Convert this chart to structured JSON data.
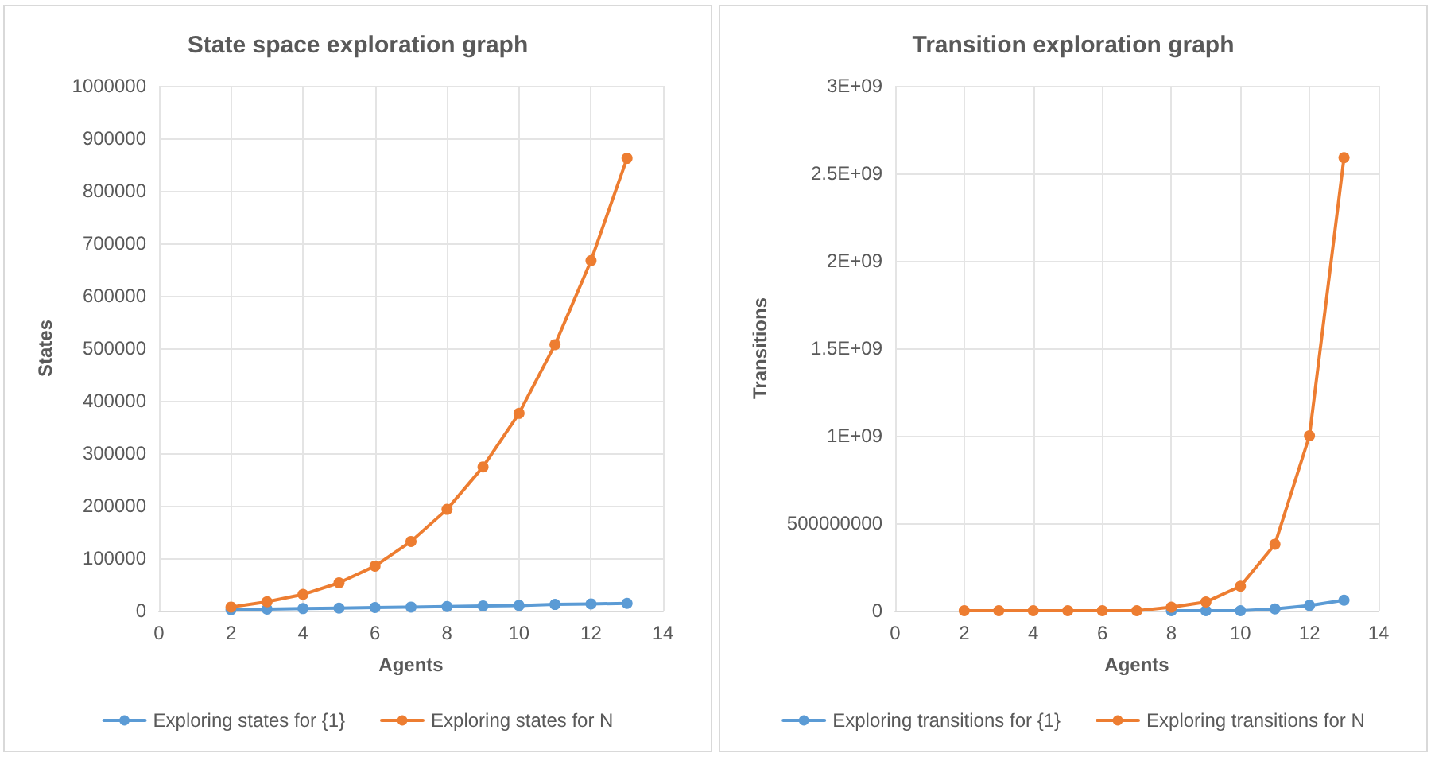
{
  "chart_data": [
    {
      "type": "line",
      "title": "State space exploration graph",
      "xlabel": "Agents",
      "ylabel": "States",
      "x": [
        2,
        3,
        4,
        5,
        6,
        7,
        8,
        9,
        10,
        11,
        12,
        13
      ],
      "series": [
        {
          "name": "Exploring states for {1}",
          "color": "#5b9bd5",
          "values": [
            2000,
            3000,
            4000,
            5000,
            6000,
            7000,
            8000,
            9000,
            10000,
            12000,
            13000,
            14000
          ]
        },
        {
          "name": "Exploring states for N",
          "color": "#ed7d31",
          "values": [
            7000,
            17000,
            31000,
            53000,
            85000,
            132000,
            193000,
            274000,
            376000,
            507000,
            667000,
            862000
          ]
        }
      ],
      "xlim": [
        0,
        14
      ],
      "xticks": [
        0,
        2,
        4,
        6,
        8,
        10,
        12,
        14
      ],
      "ylim": [
        0,
        1000000
      ],
      "yticks": [
        0,
        100000,
        200000,
        300000,
        400000,
        500000,
        600000,
        700000,
        800000,
        900000,
        1000000
      ],
      "grid": true,
      "legend": "bottom",
      "marker": "circle",
      "line_style": "solid"
    },
    {
      "type": "line",
      "title": "Transition exploration graph",
      "xlabel": "Agents",
      "ylabel": "Transitions",
      "x": [
        2,
        3,
        4,
        5,
        6,
        7,
        8,
        9,
        10,
        11,
        12,
        13
      ],
      "series": [
        {
          "name": "Exploring transitions for {1}",
          "color": "#5b9bd5",
          "values": [
            null,
            null,
            null,
            null,
            null,
            null,
            0,
            0,
            0,
            10000000,
            30000000,
            60000000
          ]
        },
        {
          "name": "Exploring transitions for N",
          "color": "#ed7d31",
          "values": [
            0,
            0,
            0,
            0,
            0,
            0,
            20000000,
            50000000,
            140000000,
            380000000,
            1000000000,
            2590000000
          ]
        }
      ],
      "xlim": [
        0,
        14
      ],
      "xticks": [
        0,
        2,
        4,
        6,
        8,
        10,
        12,
        14
      ],
      "ylim": [
        0,
        3000000000
      ],
      "yticks": [
        0,
        500000000,
        {
          "value": 1000000000,
          "label": "1E+09"
        },
        {
          "value": 1500000000,
          "label": "1.5E+09"
        },
        {
          "value": 2000000000,
          "label": "2E+09"
        },
        {
          "value": 2500000000,
          "label": "2.5E+09"
        },
        {
          "value": 3000000000,
          "label": "3E+09"
        }
      ],
      "grid": true,
      "legend": "bottom",
      "marker": "circle",
      "line_style": "solid"
    }
  ]
}
